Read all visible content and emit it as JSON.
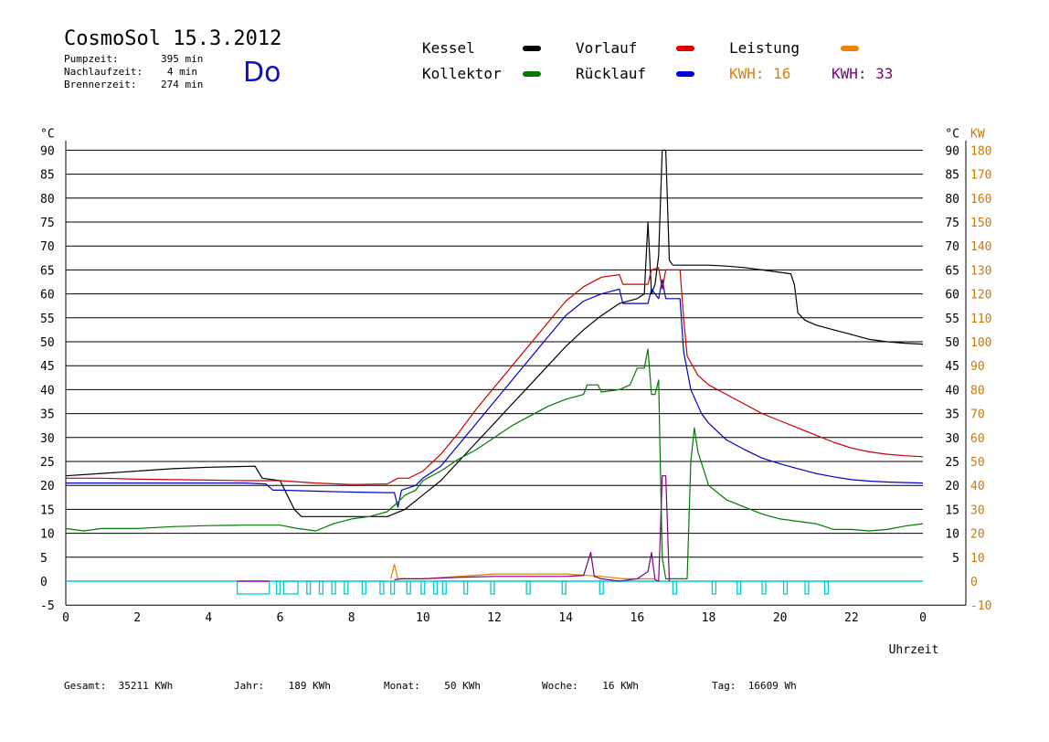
{
  "header": {
    "title": "CosmoSol 15.3.2012",
    "day": "Do",
    "pumpzeit_label": "Pumpzeit:",
    "pumpzeit_value": "395 min",
    "nachlaufzeit_label": "Nachlaufzeit:",
    "nachlaufzeit_value": "4 min",
    "brennerzeit_label": "Brennerzeit:",
    "brennerzeit_value": "274 min"
  },
  "legend": {
    "kessel": "Kessel",
    "kollektor": "Kollektor",
    "vorlauf": "Vorlauf",
    "ruecklauf": "Rücklauf",
    "leistung": "Leistung",
    "kwh1_label": "KWH:",
    "kwh1_value": "16",
    "kwh2_label": "KWH:",
    "kwh2_value": "33"
  },
  "colors": {
    "kessel": "#000000",
    "kollektor": "#007a00",
    "vorlauf": "#cc0000",
    "ruecklauf": "#0000cc",
    "leistung": "#e08000",
    "kwh2": "#800080",
    "cyan": "#00cccc",
    "magenta": "#cc00cc",
    "right_axis": "#d07800"
  },
  "footer": {
    "gesamt_label": "Gesamt:",
    "gesamt_value": "35211 KWh",
    "jahr_label": "Jahr:",
    "jahr_value": "189 KWh",
    "monat_label": "Monat:",
    "monat_value": "50 KWh",
    "woche_label": "Woche:",
    "woche_value": "16 KWh",
    "tag_label": "Tag:",
    "tag_value": "16609 Wh"
  },
  "chart_data": {
    "type": "line",
    "xlabel": "Uhrzeit",
    "ylabel_left": "°C",
    "ylabel_right_1": "°C",
    "ylabel_right_2": "KW",
    "xlim": [
      0,
      24
    ],
    "ylim": [
      -5,
      92
    ],
    "grid": true,
    "x_ticks": [
      "0",
      "2",
      "4",
      "6",
      "8",
      "10",
      "12",
      "14",
      "16",
      "18",
      "20",
      "22",
      "0"
    ],
    "y_ticks_left": [
      "-5",
      "0",
      "5",
      "10",
      "15",
      "20",
      "25",
      "30",
      "35",
      "40",
      "45",
      "50",
      "55",
      "60",
      "65",
      "70",
      "75",
      "80",
      "85",
      "90"
    ],
    "y_ticks_right_c": [
      "5",
      "10",
      "15",
      "20",
      "25",
      "30",
      "35",
      "40",
      "45",
      "50",
      "55",
      "60",
      "65",
      "70",
      "75",
      "80",
      "85",
      "90"
    ],
    "y_ticks_right_kw": [
      "-10",
      "0",
      "10",
      "20",
      "30",
      "40",
      "50",
      "60",
      "70",
      "80",
      "90",
      "100",
      "110",
      "120",
      "130",
      "140",
      "150",
      "160",
      "170",
      "180"
    ],
    "series": [
      {
        "name": "Kessel",
        "color": "#000000",
        "points": [
          [
            0,
            22
          ],
          [
            1,
            22.5
          ],
          [
            2,
            23
          ],
          [
            3,
            23.5
          ],
          [
            4,
            23.8
          ],
          [
            5.3,
            24
          ],
          [
            5.5,
            21.5
          ],
          [
            6,
            21
          ],
          [
            6.2,
            18
          ],
          [
            6.4,
            15
          ],
          [
            6.6,
            13.5
          ],
          [
            7,
            13.5
          ],
          [
            8,
            13.5
          ],
          [
            9,
            13.5
          ],
          [
            9.5,
            15
          ],
          [
            10,
            18
          ],
          [
            10.5,
            21
          ],
          [
            11,
            25
          ],
          [
            11.5,
            29
          ],
          [
            12,
            33
          ],
          [
            12.5,
            37
          ],
          [
            13,
            41
          ],
          [
            13.5,
            45
          ],
          [
            14,
            49
          ],
          [
            14.5,
            52.5
          ],
          [
            15,
            55.5
          ],
          [
            15.5,
            58
          ],
          [
            16,
            59
          ],
          [
            16.2,
            60
          ],
          [
            16.3,
            75
          ],
          [
            16.4,
            60
          ],
          [
            16.5,
            62
          ],
          [
            16.6,
            68
          ],
          [
            16.7,
            90
          ],
          [
            16.8,
            90
          ],
          [
            16.9,
            67
          ],
          [
            17,
            66
          ],
          [
            17.5,
            66
          ],
          [
            18,
            66
          ],
          [
            18.5,
            65.8
          ],
          [
            19,
            65.5
          ],
          [
            19.5,
            65
          ],
          [
            20,
            64.5
          ],
          [
            20.3,
            64.2
          ],
          [
            20.4,
            62
          ],
          [
            20.5,
            56
          ],
          [
            20.7,
            54.5
          ],
          [
            21,
            53.5
          ],
          [
            21.5,
            52.5
          ],
          [
            22,
            51.5
          ],
          [
            22.5,
            50.5
          ],
          [
            23,
            50
          ],
          [
            23.5,
            49.7
          ],
          [
            24,
            49.5
          ]
        ]
      },
      {
        "name": "Vorlauf",
        "color": "#cc0000",
        "points": [
          [
            0,
            21.5
          ],
          [
            1,
            21.5
          ],
          [
            2,
            21.3
          ],
          [
            3,
            21.2
          ],
          [
            4,
            21.1
          ],
          [
            5,
            21
          ],
          [
            6,
            21
          ],
          [
            7,
            20.5
          ],
          [
            8,
            20.2
          ],
          [
            9,
            20.3
          ],
          [
            9.3,
            21.5
          ],
          [
            9.6,
            21.5
          ],
          [
            10,
            23
          ],
          [
            10.5,
            26.5
          ],
          [
            11,
            31
          ],
          [
            11.5,
            36
          ],
          [
            12,
            40.5
          ],
          [
            12.5,
            45
          ],
          [
            13,
            49.5
          ],
          [
            13.5,
            54
          ],
          [
            14,
            58.5
          ],
          [
            14.5,
            61.5
          ],
          [
            15,
            63.5
          ],
          [
            15.5,
            64
          ],
          [
            15.6,
            62
          ],
          [
            16.3,
            62
          ],
          [
            16.4,
            65
          ],
          [
            16.6,
            65.5
          ],
          [
            16.7,
            61
          ],
          [
            16.8,
            65
          ],
          [
            17.2,
            65
          ],
          [
            17.3,
            55
          ],
          [
            17.4,
            47
          ],
          [
            17.7,
            43
          ],
          [
            18,
            41
          ],
          [
            18.5,
            39
          ],
          [
            19,
            37
          ],
          [
            19.5,
            35
          ],
          [
            20,
            33.5
          ],
          [
            20.5,
            32
          ],
          [
            21,
            30.5
          ],
          [
            21.5,
            29
          ],
          [
            22,
            27.8
          ],
          [
            22.5,
            27
          ],
          [
            23,
            26.5
          ],
          [
            23.5,
            26.2
          ],
          [
            24,
            26
          ]
        ]
      },
      {
        "name": "Rücklauf",
        "color": "#0000cc",
        "points": [
          [
            0,
            20.5
          ],
          [
            1,
            20.5
          ],
          [
            2,
            20.5
          ],
          [
            3,
            20.5
          ],
          [
            4,
            20.5
          ],
          [
            5,
            20.5
          ],
          [
            5.6,
            20.3
          ],
          [
            5.8,
            19
          ],
          [
            6,
            19
          ],
          [
            7,
            18.8
          ],
          [
            8,
            18.6
          ],
          [
            9,
            18.5
          ],
          [
            9.2,
            18.5
          ],
          [
            9.3,
            15.5
          ],
          [
            9.4,
            19
          ],
          [
            9.8,
            20
          ],
          [
            10,
            21.5
          ],
          [
            10.5,
            24
          ],
          [
            11,
            28.5
          ],
          [
            11.5,
            33
          ],
          [
            12,
            37.5
          ],
          [
            12.5,
            42
          ],
          [
            13,
            46.5
          ],
          [
            13.5,
            51
          ],
          [
            14,
            55.5
          ],
          [
            14.5,
            58.5
          ],
          [
            15,
            60
          ],
          [
            15.5,
            61
          ],
          [
            15.6,
            58
          ],
          [
            16.3,
            58
          ],
          [
            16.4,
            61
          ],
          [
            16.6,
            59
          ],
          [
            16.7,
            63
          ],
          [
            16.8,
            59
          ],
          [
            17.2,
            59
          ],
          [
            17.3,
            48
          ],
          [
            17.5,
            40
          ],
          [
            17.8,
            35
          ],
          [
            18,
            33
          ],
          [
            18.5,
            29.5
          ],
          [
            19,
            27.5
          ],
          [
            19.5,
            25.7
          ],
          [
            20,
            24.5
          ],
          [
            20.5,
            23.5
          ],
          [
            21,
            22.5
          ],
          [
            21.5,
            21.8
          ],
          [
            22,
            21.2
          ],
          [
            22.5,
            20.9
          ],
          [
            23,
            20.7
          ],
          [
            23.5,
            20.6
          ],
          [
            24,
            20.5
          ]
        ]
      },
      {
        "name": "Kollektor",
        "color": "#007a00",
        "points": [
          [
            0,
            11
          ],
          [
            0.5,
            10.5
          ],
          [
            1,
            11
          ],
          [
            2,
            11
          ],
          [
            3,
            11.4
          ],
          [
            4,
            11.6
          ],
          [
            5,
            11.7
          ],
          [
            6,
            11.7
          ],
          [
            6.5,
            11
          ],
          [
            7,
            10.5
          ],
          [
            7.5,
            12
          ],
          [
            8,
            13
          ],
          [
            8.5,
            13.5
          ],
          [
            9,
            14.5
          ],
          [
            9.3,
            16.5
          ],
          [
            9.5,
            18
          ],
          [
            9.8,
            19
          ],
          [
            10,
            21
          ],
          [
            10.5,
            23
          ],
          [
            11,
            25.5
          ],
          [
            11.5,
            27.5
          ],
          [
            12,
            30
          ],
          [
            12.5,
            32.5
          ],
          [
            13,
            34.5
          ],
          [
            13.5,
            36.5
          ],
          [
            14,
            38
          ],
          [
            14.5,
            39
          ],
          [
            14.6,
            41
          ],
          [
            14.9,
            41
          ],
          [
            15,
            39.5
          ],
          [
            15.5,
            40
          ],
          [
            15.8,
            41
          ],
          [
            16,
            44.5
          ],
          [
            16.2,
            44.5
          ],
          [
            16.3,
            48.5
          ],
          [
            16.4,
            39
          ],
          [
            16.5,
            39
          ],
          [
            16.6,
            42
          ],
          [
            16.7,
            5
          ],
          [
            16.8,
            0.5
          ],
          [
            17.2,
            0.5
          ],
          [
            17.4,
            0.5
          ],
          [
            17.5,
            25
          ],
          [
            17.6,
            32
          ],
          [
            17.7,
            27
          ],
          [
            18,
            20
          ],
          [
            18.5,
            17
          ],
          [
            19,
            15.5
          ],
          [
            19.5,
            14
          ],
          [
            20,
            13
          ],
          [
            20.5,
            12.5
          ],
          [
            21,
            12
          ],
          [
            21.5,
            10.8
          ],
          [
            22,
            10.8
          ],
          [
            22.5,
            10.5
          ],
          [
            23,
            10.8
          ],
          [
            23.5,
            11.5
          ],
          [
            24,
            12
          ]
        ]
      },
      {
        "name": "Leistung",
        "color": "#e08000",
        "points": [
          [
            9.1,
            0.5
          ],
          [
            9.2,
            3.5
          ],
          [
            9.3,
            0.5
          ],
          [
            10,
            0.5
          ],
          [
            11,
            1.0
          ],
          [
            12,
            1.5
          ],
          [
            13,
            1.5
          ],
          [
            14,
            1.5
          ],
          [
            15,
            1.0
          ],
          [
            15.6,
            0.5
          ],
          [
            16,
            0.5
          ],
          [
            16.5,
            0.5
          ]
        ]
      },
      {
        "name": "KWH2",
        "color": "#800080",
        "points": [
          [
            9.2,
            0.3
          ],
          [
            9.4,
            0.5
          ],
          [
            10,
            0.5
          ],
          [
            11,
            0.8
          ],
          [
            12,
            1.0
          ],
          [
            13,
            1.0
          ],
          [
            14,
            1.0
          ],
          [
            14.5,
            1.2
          ],
          [
            14.7,
            6
          ],
          [
            14.8,
            1
          ],
          [
            15,
            0.5
          ],
          [
            15.5,
            0
          ],
          [
            16,
            0.5
          ],
          [
            16.3,
            2
          ],
          [
            16.4,
            6
          ],
          [
            16.5,
            0.3
          ],
          [
            16.6,
            0
          ],
          [
            16.65,
            10
          ],
          [
            16.7,
            22
          ],
          [
            16.8,
            22
          ],
          [
            16.9,
            0
          ]
        ]
      }
    ],
    "pump_pulses": [
      [
        4.8,
        5.7
      ],
      [
        5.9,
        6.0
      ],
      [
        6.1,
        6.5
      ],
      [
        6.75,
        6.85
      ],
      [
        7.1,
        7.2
      ],
      [
        7.45,
        7.55
      ],
      [
        7.8,
        7.9
      ],
      [
        8.3,
        8.4
      ],
      [
        8.8,
        8.9
      ],
      [
        9.1,
        9.2
      ],
      [
        9.55,
        9.65
      ],
      [
        9.95,
        10.05
      ],
      [
        10.3,
        10.4
      ],
      [
        10.55,
        10.65
      ],
      [
        11.15,
        11.25
      ],
      [
        11.9,
        12.0
      ],
      [
        12.9,
        13.0
      ],
      [
        13.9,
        14.0
      ],
      [
        14.95,
        15.05
      ],
      [
        17.0,
        17.1
      ],
      [
        18.1,
        18.2
      ],
      [
        18.8,
        18.9
      ],
      [
        19.5,
        19.6
      ],
      [
        20.1,
        20.2
      ],
      [
        20.7,
        20.8
      ],
      [
        21.25,
        21.35
      ]
    ]
  }
}
